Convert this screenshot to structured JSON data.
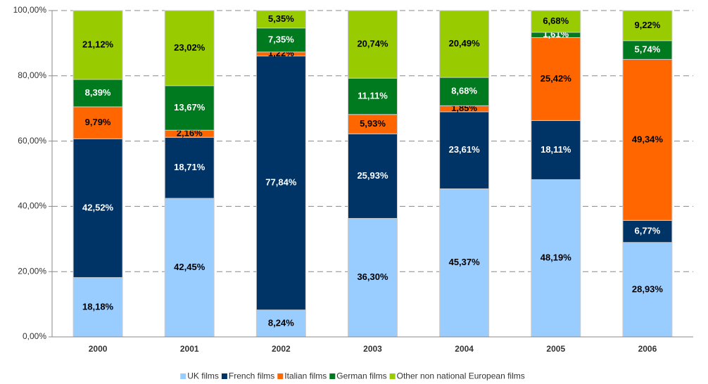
{
  "chart_data": {
    "type": "stacked_bar",
    "categories": [
      "2000",
      "2001",
      "2002",
      "2003",
      "2004",
      "2005",
      "2006"
    ],
    "series": [
      {
        "name": "UK films",
        "color": "#99ccff",
        "values": [
          18.18,
          42.45,
          8.24,
          36.3,
          45.37,
          48.19,
          28.93
        ],
        "value_labels": [
          "18,18%",
          "42,45%",
          "8,24%",
          "36,30%",
          "45,37%",
          "48,19%",
          "28,93%"
        ]
      },
      {
        "name": "French films",
        "color": "#003366",
        "values": [
          42.52,
          18.71,
          77.84,
          25.93,
          23.61,
          18.11,
          6.77
        ],
        "value_labels": [
          "42,52%",
          "18,71%",
          "77,84%",
          "25,93%",
          "23,61%",
          "18,11%",
          "6,77%"
        ]
      },
      {
        "name": "Italian films",
        "color": "#ff6600",
        "values": [
          9.79,
          2.16,
          1.22,
          5.93,
          1.85,
          25.42,
          49.34
        ],
        "value_labels": [
          "9,79%",
          "2,16%",
          "1,22%",
          "5,93%",
          "1,85%",
          "25,42%",
          "49,34%"
        ]
      },
      {
        "name": "German films",
        "color": "#007a1f",
        "values": [
          8.39,
          13.67,
          7.35,
          11.11,
          8.68,
          1.61,
          5.74
        ],
        "value_labels": [
          "8,39%",
          "13,67%",
          "7,35%",
          "11,11%",
          "8,68%",
          "1,61%",
          "5,74%"
        ]
      },
      {
        "name": "Other non national European films",
        "color": "#99cc00",
        "values": [
          21.12,
          23.02,
          5.35,
          20.74,
          20.49,
          6.68,
          9.22
        ],
        "value_labels": [
          "21,12%",
          "23,02%",
          "5,35%",
          "20,74%",
          "20,49%",
          "6,68%",
          "9,22%"
        ]
      }
    ],
    "ylim": [
      0,
      100
    ],
    "yticks": [
      {
        "value": 0,
        "label": "0,00%"
      },
      {
        "value": 20,
        "label": "20,00%"
      },
      {
        "value": 40,
        "label": "40,00%"
      },
      {
        "value": 60,
        "label": "60,00%"
      },
      {
        "value": 80,
        "label": "80,00%"
      },
      {
        "value": 100,
        "label": "100,00%"
      }
    ],
    "grid": true,
    "legend": "bottom"
  }
}
